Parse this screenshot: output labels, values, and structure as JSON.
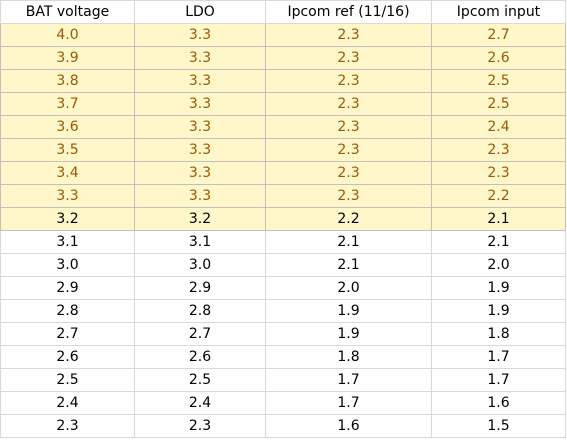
{
  "columns": [
    "BAT voltage",
    "LDO",
    "Ipcom ref (11/16)",
    "Ipcom input"
  ],
  "rows": [
    {
      "cells": [
        "4.0",
        "3.3",
        "2.3",
        "2.7"
      ],
      "highlight": true,
      "text_color": "#9a5a09"
    },
    {
      "cells": [
        "3.9",
        "3.3",
        "2.3",
        "2.6"
      ],
      "highlight": true,
      "text_color": "#9a5a09"
    },
    {
      "cells": [
        "3.8",
        "3.3",
        "2.3",
        "2.5"
      ],
      "highlight": true,
      "text_color": "#9a5a09"
    },
    {
      "cells": [
        "3.7",
        "3.3",
        "2.3",
        "2.5"
      ],
      "highlight": true,
      "text_color": "#9a5a09"
    },
    {
      "cells": [
        "3.6",
        "3.3",
        "2.3",
        "2.4"
      ],
      "highlight": true,
      "text_color": "#9a5a09"
    },
    {
      "cells": [
        "3.5",
        "3.3",
        "2.3",
        "2.3"
      ],
      "highlight": true,
      "text_color": "#9a5a09"
    },
    {
      "cells": [
        "3.4",
        "3.3",
        "2.3",
        "2.3"
      ],
      "highlight": true,
      "text_color": "#9a5a09"
    },
    {
      "cells": [
        "3.3",
        "3.3",
        "2.3",
        "2.2"
      ],
      "highlight": true,
      "text_color": "#9a5a09"
    },
    {
      "cells": [
        "3.2",
        "3.2",
        "2.2",
        "2.1"
      ],
      "highlight": true,
      "text_color": "#000000"
    },
    {
      "cells": [
        "3.1",
        "3.1",
        "2.1",
        "2.1"
      ],
      "highlight": false,
      "text_color": "#000000"
    },
    {
      "cells": [
        "3.0",
        "3.0",
        "2.1",
        "2.0"
      ],
      "highlight": false,
      "text_color": "#000000"
    },
    {
      "cells": [
        "2.9",
        "2.9",
        "2.0",
        "1.9"
      ],
      "highlight": false,
      "text_color": "#000000"
    },
    {
      "cells": [
        "2.8",
        "2.8",
        "1.9",
        "1.9"
      ],
      "highlight": false,
      "text_color": "#000000"
    },
    {
      "cells": [
        "2.7",
        "2.7",
        "1.9",
        "1.8"
      ],
      "highlight": false,
      "text_color": "#000000"
    },
    {
      "cells": [
        "2.6",
        "2.6",
        "1.8",
        "1.7"
      ],
      "highlight": false,
      "text_color": "#000000"
    },
    {
      "cells": [
        "2.5",
        "2.5",
        "1.7",
        "1.7"
      ],
      "highlight": false,
      "text_color": "#000000"
    },
    {
      "cells": [
        "2.4",
        "2.4",
        "1.7",
        "1.6"
      ],
      "highlight": false,
      "text_color": "#000000"
    },
    {
      "cells": [
        "2.3",
        "2.3",
        "1.6",
        "1.5"
      ],
      "highlight": false,
      "text_color": "#000000"
    }
  ],
  "colors": {
    "highlight_fill": "#fff6c9",
    "highlight_text": "#9a5a09",
    "gridline": "#d9d9d9"
  }
}
